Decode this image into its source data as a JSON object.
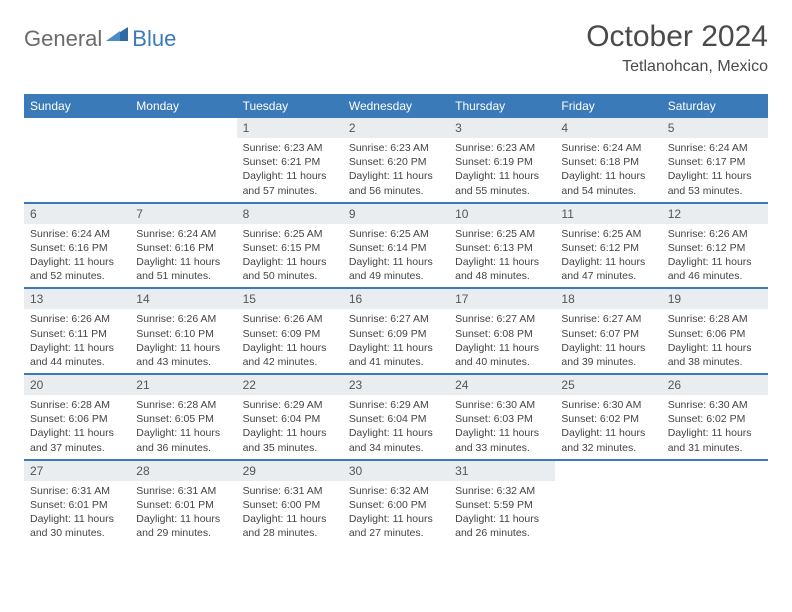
{
  "logo": {
    "general": "General",
    "blue": "Blue"
  },
  "title": "October 2024",
  "location": "Tetlanohcan, Mexico",
  "colors": {
    "header_bg": "#3a7ab8",
    "daynum_bg": "#e9edf0",
    "text": "#444444",
    "title_text": "#4a4a4a"
  },
  "day_headers": [
    "Sunday",
    "Monday",
    "Tuesday",
    "Wednesday",
    "Thursday",
    "Friday",
    "Saturday"
  ],
  "weeks": [
    [
      null,
      null,
      {
        "n": "1",
        "sr": "Sunrise: 6:23 AM",
        "ss": "Sunset: 6:21 PM",
        "dl": "Daylight: 11 hours and 57 minutes."
      },
      {
        "n": "2",
        "sr": "Sunrise: 6:23 AM",
        "ss": "Sunset: 6:20 PM",
        "dl": "Daylight: 11 hours and 56 minutes."
      },
      {
        "n": "3",
        "sr": "Sunrise: 6:23 AM",
        "ss": "Sunset: 6:19 PM",
        "dl": "Daylight: 11 hours and 55 minutes."
      },
      {
        "n": "4",
        "sr": "Sunrise: 6:24 AM",
        "ss": "Sunset: 6:18 PM",
        "dl": "Daylight: 11 hours and 54 minutes."
      },
      {
        "n": "5",
        "sr": "Sunrise: 6:24 AM",
        "ss": "Sunset: 6:17 PM",
        "dl": "Daylight: 11 hours and 53 minutes."
      }
    ],
    [
      {
        "n": "6",
        "sr": "Sunrise: 6:24 AM",
        "ss": "Sunset: 6:16 PM",
        "dl": "Daylight: 11 hours and 52 minutes."
      },
      {
        "n": "7",
        "sr": "Sunrise: 6:24 AM",
        "ss": "Sunset: 6:16 PM",
        "dl": "Daylight: 11 hours and 51 minutes."
      },
      {
        "n": "8",
        "sr": "Sunrise: 6:25 AM",
        "ss": "Sunset: 6:15 PM",
        "dl": "Daylight: 11 hours and 50 minutes."
      },
      {
        "n": "9",
        "sr": "Sunrise: 6:25 AM",
        "ss": "Sunset: 6:14 PM",
        "dl": "Daylight: 11 hours and 49 minutes."
      },
      {
        "n": "10",
        "sr": "Sunrise: 6:25 AM",
        "ss": "Sunset: 6:13 PM",
        "dl": "Daylight: 11 hours and 48 minutes."
      },
      {
        "n": "11",
        "sr": "Sunrise: 6:25 AM",
        "ss": "Sunset: 6:12 PM",
        "dl": "Daylight: 11 hours and 47 minutes."
      },
      {
        "n": "12",
        "sr": "Sunrise: 6:26 AM",
        "ss": "Sunset: 6:12 PM",
        "dl": "Daylight: 11 hours and 46 minutes."
      }
    ],
    [
      {
        "n": "13",
        "sr": "Sunrise: 6:26 AM",
        "ss": "Sunset: 6:11 PM",
        "dl": "Daylight: 11 hours and 44 minutes."
      },
      {
        "n": "14",
        "sr": "Sunrise: 6:26 AM",
        "ss": "Sunset: 6:10 PM",
        "dl": "Daylight: 11 hours and 43 minutes."
      },
      {
        "n": "15",
        "sr": "Sunrise: 6:26 AM",
        "ss": "Sunset: 6:09 PM",
        "dl": "Daylight: 11 hours and 42 minutes."
      },
      {
        "n": "16",
        "sr": "Sunrise: 6:27 AM",
        "ss": "Sunset: 6:09 PM",
        "dl": "Daylight: 11 hours and 41 minutes."
      },
      {
        "n": "17",
        "sr": "Sunrise: 6:27 AM",
        "ss": "Sunset: 6:08 PM",
        "dl": "Daylight: 11 hours and 40 minutes."
      },
      {
        "n": "18",
        "sr": "Sunrise: 6:27 AM",
        "ss": "Sunset: 6:07 PM",
        "dl": "Daylight: 11 hours and 39 minutes."
      },
      {
        "n": "19",
        "sr": "Sunrise: 6:28 AM",
        "ss": "Sunset: 6:06 PM",
        "dl": "Daylight: 11 hours and 38 minutes."
      }
    ],
    [
      {
        "n": "20",
        "sr": "Sunrise: 6:28 AM",
        "ss": "Sunset: 6:06 PM",
        "dl": "Daylight: 11 hours and 37 minutes."
      },
      {
        "n": "21",
        "sr": "Sunrise: 6:28 AM",
        "ss": "Sunset: 6:05 PM",
        "dl": "Daylight: 11 hours and 36 minutes."
      },
      {
        "n": "22",
        "sr": "Sunrise: 6:29 AM",
        "ss": "Sunset: 6:04 PM",
        "dl": "Daylight: 11 hours and 35 minutes."
      },
      {
        "n": "23",
        "sr": "Sunrise: 6:29 AM",
        "ss": "Sunset: 6:04 PM",
        "dl": "Daylight: 11 hours and 34 minutes."
      },
      {
        "n": "24",
        "sr": "Sunrise: 6:30 AM",
        "ss": "Sunset: 6:03 PM",
        "dl": "Daylight: 11 hours and 33 minutes."
      },
      {
        "n": "25",
        "sr": "Sunrise: 6:30 AM",
        "ss": "Sunset: 6:02 PM",
        "dl": "Daylight: 11 hours and 32 minutes."
      },
      {
        "n": "26",
        "sr": "Sunrise: 6:30 AM",
        "ss": "Sunset: 6:02 PM",
        "dl": "Daylight: 11 hours and 31 minutes."
      }
    ],
    [
      {
        "n": "27",
        "sr": "Sunrise: 6:31 AM",
        "ss": "Sunset: 6:01 PM",
        "dl": "Daylight: 11 hours and 30 minutes."
      },
      {
        "n": "28",
        "sr": "Sunrise: 6:31 AM",
        "ss": "Sunset: 6:01 PM",
        "dl": "Daylight: 11 hours and 29 minutes."
      },
      {
        "n": "29",
        "sr": "Sunrise: 6:31 AM",
        "ss": "Sunset: 6:00 PM",
        "dl": "Daylight: 11 hours and 28 minutes."
      },
      {
        "n": "30",
        "sr": "Sunrise: 6:32 AM",
        "ss": "Sunset: 6:00 PM",
        "dl": "Daylight: 11 hours and 27 minutes."
      },
      {
        "n": "31",
        "sr": "Sunrise: 6:32 AM",
        "ss": "Sunset: 5:59 PM",
        "dl": "Daylight: 11 hours and 26 minutes."
      },
      null,
      null
    ]
  ]
}
